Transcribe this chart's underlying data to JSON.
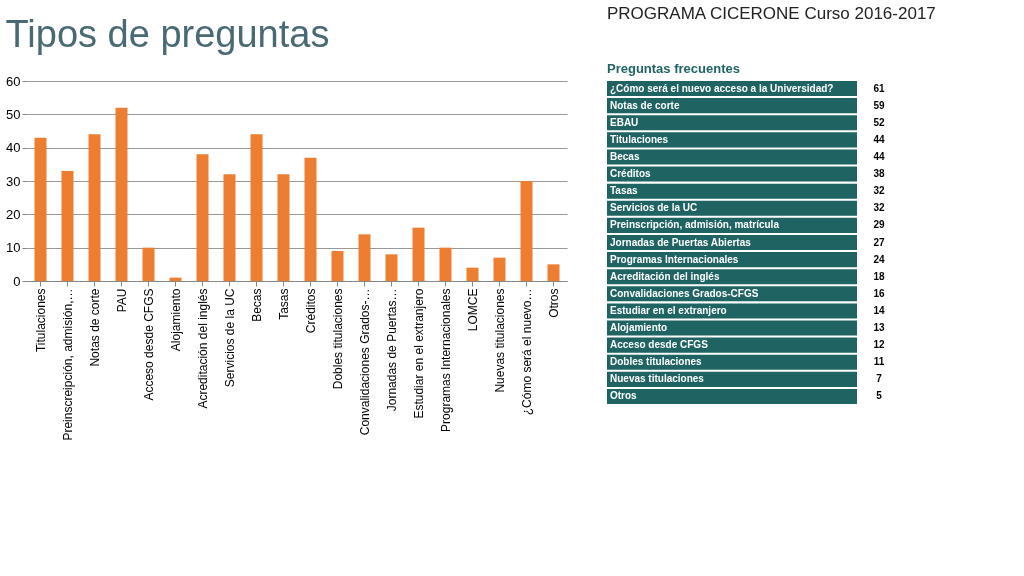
{
  "chart_data": [
    {
      "type": "bar",
      "title": "Tipos de preguntas",
      "categories": [
        "Titulaciones",
        "Preinscreipción, admisión,…",
        "Notas de corte",
        "PAU",
        "Acceso desde CFGS",
        "Alojamiento",
        "Acreditación del inglés",
        "Servicios de la UC",
        "Becas",
        "Tasas",
        "Créditos",
        "Dobles titulaciones",
        "Convalidaciones Grados-…",
        "Jornadas de Puertas…",
        "Estudiar en el extranjero",
        "Programas Internacionales",
        "LOMCE",
        "Nuevas titulaciones",
        "¿Cómo será el nuevo…",
        "Otros"
      ],
      "values": [
        43,
        33,
        44,
        52,
        10,
        1,
        38,
        32,
        44,
        32,
        37,
        9,
        14,
        8,
        16,
        10,
        4,
        7,
        30,
        5
      ],
      "color": "#ed7d31",
      "ylim": [
        0,
        60
      ],
      "yticks": [
        0,
        10,
        20,
        30,
        40,
        50,
        60
      ],
      "grid": "y"
    },
    {
      "type": "other",
      "title": "Preguntas frecuentes",
      "subtitle": "PROGRAMA CICERONE   Curso 2016-2017",
      "categories": [
        "¿Cómo será el nuevo acceso a la Universidad?",
        "Notas de corte",
        "EBAU",
        "Titulaciones",
        "Becas",
        "Créditos",
        "Tasas",
        "Servicios de la UC",
        "Preinscripción, admisión, matrícula",
        "Jornadas de Puertas Abiertas",
        "Programas Internacionales",
        "Acreditación del inglés",
        "Convalidaciones Grados-CFGS",
        "Estudiar en el extranjero",
        "Alojamiento",
        "Acceso desde CFGS",
        "Dobles titulaciones",
        "Nuevas titulaciones",
        "Otros"
      ],
      "values": [
        61,
        59,
        52,
        44,
        44,
        38,
        32,
        32,
        29,
        27,
        24,
        18,
        16,
        14,
        13,
        12,
        11,
        7,
        5
      ],
      "color": "#1f6462",
      "data_labels": true
    }
  ]
}
